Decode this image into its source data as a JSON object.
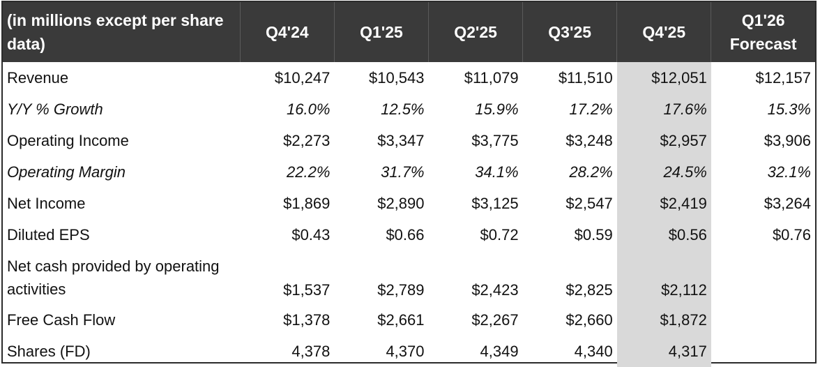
{
  "table": {
    "header": {
      "label_line1": "(in millions except per share",
      "label_line2": "data)",
      "columns": [
        "Q4'24",
        "Q1'25",
        "Q2'25",
        "Q3'25",
        "Q4'25"
      ],
      "forecast_line1": "Q1'26",
      "forecast_line2": "Forecast"
    },
    "highlight_column": "Q4'25",
    "colors": {
      "header_bg": "#3a3a3a",
      "header_text": "#ffffff",
      "highlight_bg": "#d9d9d9"
    },
    "rows": [
      {
        "label": "Revenue",
        "values": [
          "$10,247",
          "$10,543",
          "$11,079",
          "$11,510",
          "$12,051",
          "$12,157"
        ]
      },
      {
        "label": "Y/Y % Growth",
        "values": [
          "16.0%",
          "12.5%",
          "15.9%",
          "17.2%",
          "17.6%",
          "15.3%"
        ]
      },
      {
        "label": "Operating Income",
        "values": [
          "$2,273",
          "$3,347",
          "$3,775",
          "$3,248",
          "$2,957",
          "$3,906"
        ]
      },
      {
        "label": "Operating Margin",
        "values": [
          "22.2%",
          "31.7%",
          "34.1%",
          "28.2%",
          "24.5%",
          "32.1%"
        ]
      },
      {
        "label": "Net Income",
        "values": [
          "$1,869",
          "$2,890",
          "$3,125",
          "$2,547",
          "$2,419",
          "$3,264"
        ]
      },
      {
        "label": "Diluted EPS",
        "values": [
          "$0.43",
          "$0.66",
          "$0.72",
          "$0.59",
          "$0.56",
          "$0.76"
        ]
      },
      {
        "label_line1": "Net cash provided by operating",
        "label_line2": "activities",
        "values": [
          "$1,537",
          "$2,789",
          "$2,423",
          "$2,825",
          "$2,112",
          ""
        ]
      },
      {
        "label": "Free Cash Flow",
        "values": [
          "$1,378",
          "$2,661",
          "$2,267",
          "$2,660",
          "$1,872",
          ""
        ]
      },
      {
        "label": "Shares (FD)",
        "values": [
          "4,378",
          "4,370",
          "4,349",
          "4,340",
          "4,317",
          ""
        ]
      }
    ]
  }
}
